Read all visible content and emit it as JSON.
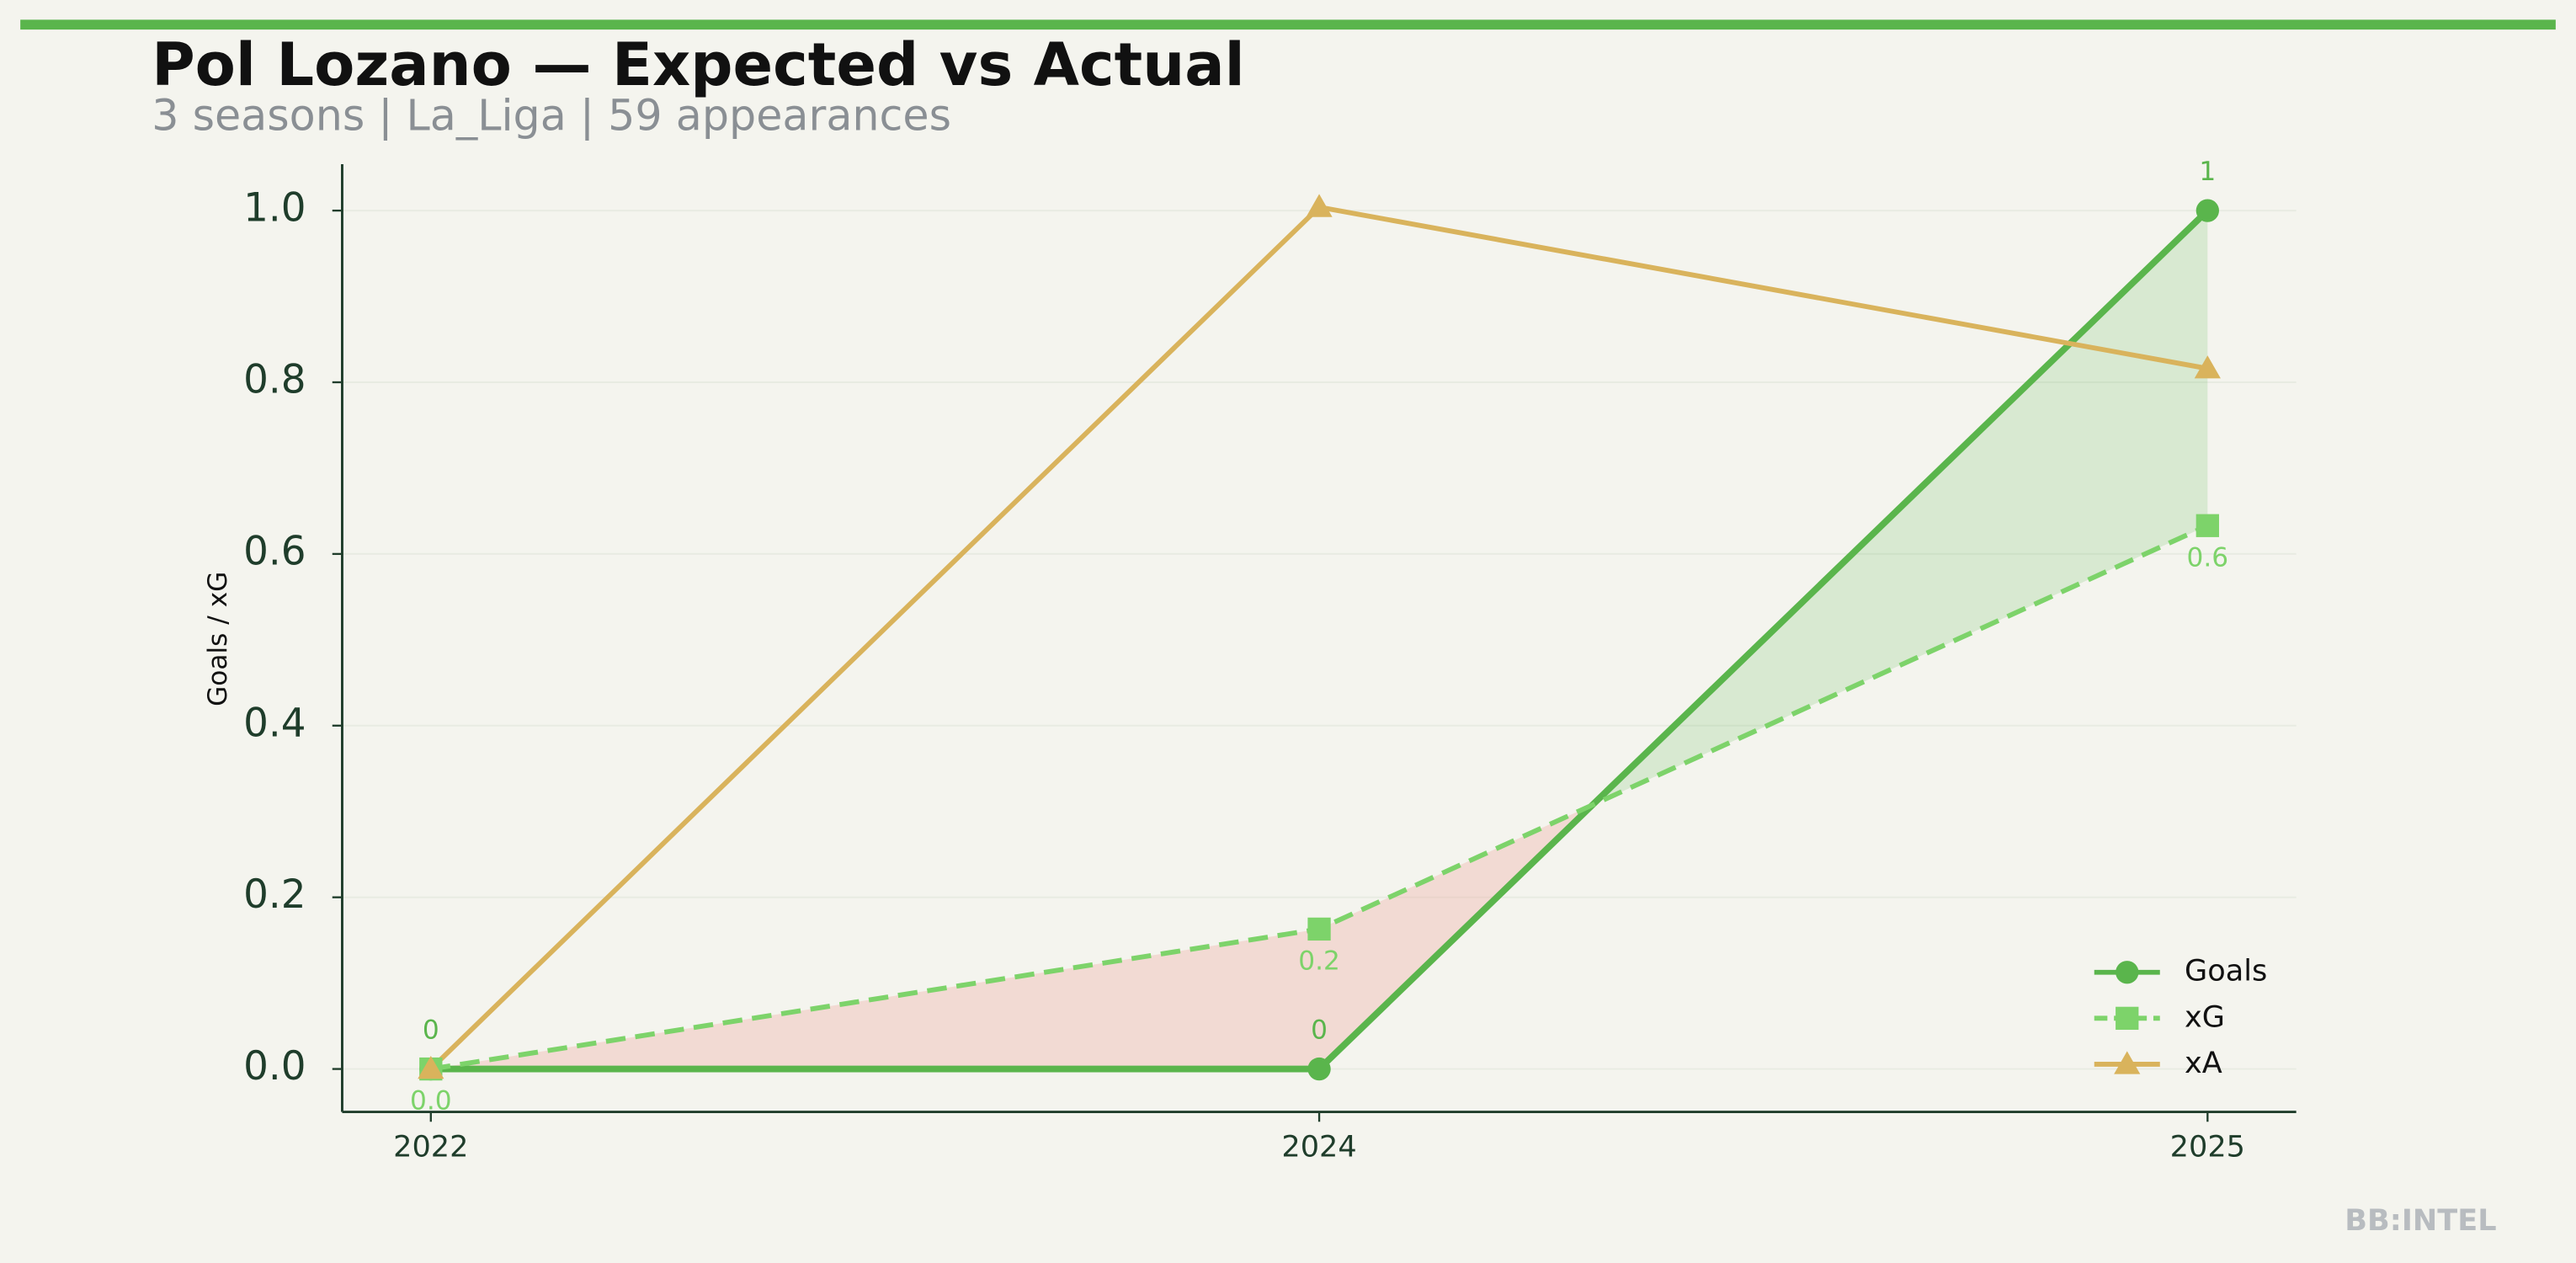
{
  "chart_data": {
    "type": "line",
    "title": "Pol Lozano — Expected vs Actual",
    "subtitle": "3 seasons | La_Liga | 59 appearances",
    "y_label": "Goals / xG",
    "watermark": "BB:INTEL",
    "categories": [
      "2022",
      "2024",
      "2025"
    ],
    "series": [
      {
        "name": "Goals",
        "color": "#5ab54c",
        "marker": "circle",
        "dash": false,
        "values": [
          0,
          0,
          1
        ],
        "value_labels": [
          "0",
          "0",
          "1"
        ]
      },
      {
        "name": "xG",
        "color": "#7dd36a",
        "marker": "square",
        "dash": true,
        "values": [
          0,
          0.163,
          0.633
        ],
        "value_labels": [
          "0.0",
          "0.2",
          "0.6"
        ]
      },
      {
        "name": "xA",
        "color": "#d9b35c",
        "marker": "triangle",
        "dash": false,
        "values": [
          0,
          1.004,
          0.816
        ]
      }
    ],
    "ylim": [
      -0.05,
      1.054
    ],
    "yticks": [
      {
        "value": 0,
        "label": "0.0"
      },
      0.2,
      0.4,
      0.6,
      0.8,
      {
        "value": 1,
        "label": "1.0"
      }
    ],
    "grid": true,
    "legend": "lower right"
  }
}
